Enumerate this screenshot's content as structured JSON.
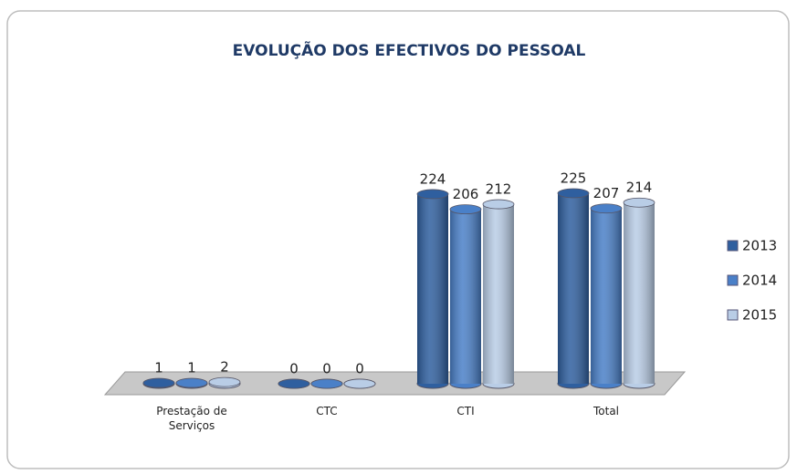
{
  "chart_data": {
    "type": "bar3d",
    "title": "EVOLUÇÃO DOS EFECTIVOS DO PESSOAL",
    "categories": [
      "Prestação de Serviços",
      "CTC",
      "CTI",
      "Total"
    ],
    "series": [
      {
        "name": "2013",
        "color": "#2f5f9f",
        "values": [
          1,
          0,
          224,
          225
        ]
      },
      {
        "name": "2014",
        "color": "#4a80c8",
        "values": [
          1,
          0,
          206,
          207
        ]
      },
      {
        "name": "2015",
        "color": "#b9cde6",
        "values": [
          2,
          0,
          212,
          214
        ]
      }
    ],
    "legend": "right"
  }
}
